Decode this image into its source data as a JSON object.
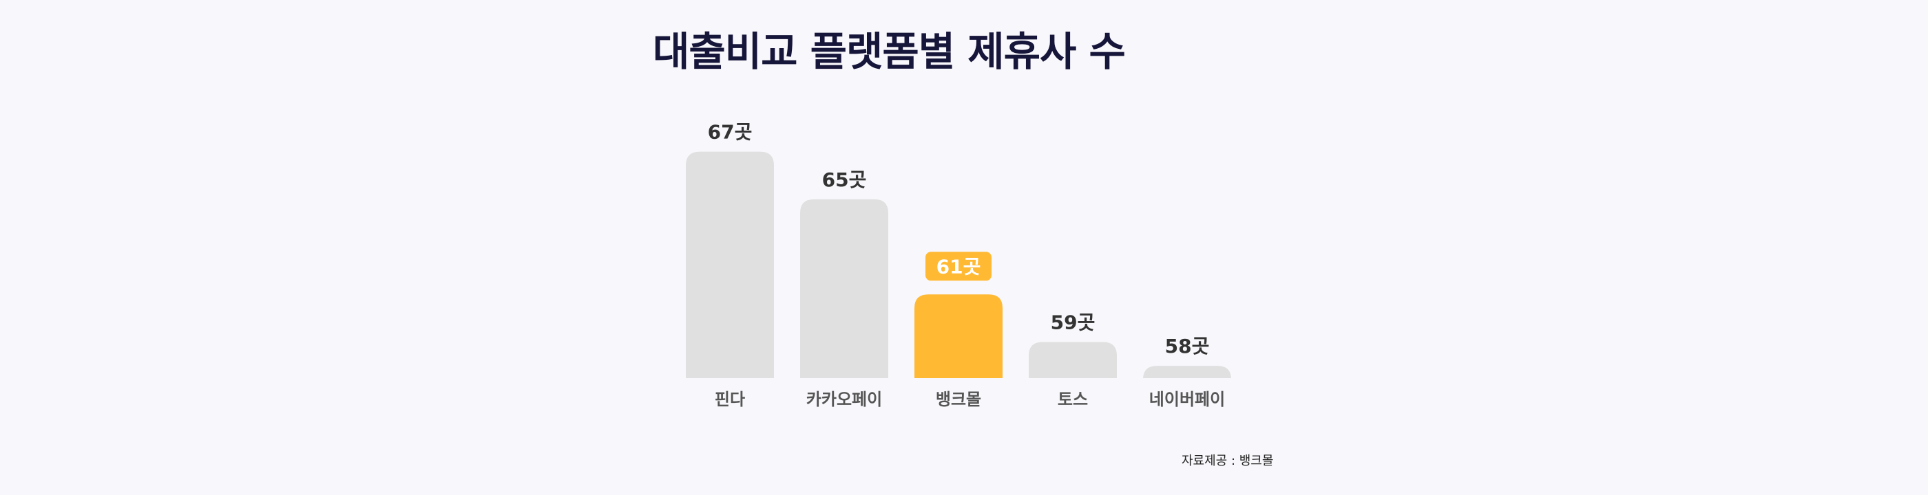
{
  "title": "대출비교 플랫폼별 제휴사 수",
  "source": "자료제공 : 뱅크몰",
  "colors": {
    "bar": "#e0e0e0",
    "highlight": "#ffb933",
    "value_text": "#333333",
    "highlight_text": "#ffffff",
    "category_text": "#555555",
    "title": "#16153a"
  },
  "chart_data": {
    "type": "bar",
    "title": "대출비교 플랫폼별 제휴사 수",
    "categories": [
      "핀다",
      "카카오페이",
      "뱅크몰",
      "토스",
      "네이버페이"
    ],
    "values": [
      67,
      65,
      61,
      59,
      58
    ],
    "value_labels": [
      "67곳",
      "65곳",
      "61곳",
      "59곳",
      "58곳"
    ],
    "highlight_index": 2,
    "xlabel": "",
    "ylabel": "",
    "grid": false,
    "legend": "none"
  }
}
